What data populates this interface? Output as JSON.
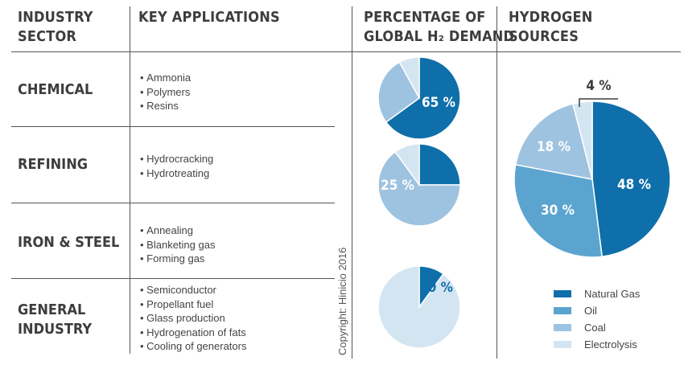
{
  "headers": {
    "sector": [
      "INDUSTRY",
      "SECTOR"
    ],
    "applications": [
      "KEY APPLICATIONS"
    ],
    "demand": [
      "PERCENTAGE OF",
      "GLOBAL H₂ DEMAND"
    ],
    "sources": [
      "HYDROGEN",
      "SOURCES"
    ]
  },
  "rows": [
    {
      "sector": [
        "CHEMICAL"
      ],
      "applications": [
        "Ammonia",
        "Polymers",
        "Resins"
      ]
    },
    {
      "sector": [
        "REFINING"
      ],
      "applications": [
        "Hydrocracking",
        "Hydrotreating"
      ]
    },
    {
      "sector": [
        "IRON & STEEL"
      ],
      "applications": [
        "Annealing",
        "Blanketing gas",
        "Forming gas"
      ]
    },
    {
      "sector": [
        "GENERAL",
        "INDUSTRY"
      ],
      "applications": [
        "Semiconductor",
        "Propellant fuel",
        "Glass production",
        "Hydrogenation of fats",
        "Cooling of generators"
      ]
    }
  ],
  "copyright": "Copyright: Hinicio 2016",
  "chart_data": [
    {
      "type": "pie",
      "title": "PERCENTAGE OF GLOBAL H₂ DEMAND",
      "charts": [
        {
          "category": "CHEMICAL",
          "value": 65,
          "label": "65 %",
          "rest_split": [
            27,
            8
          ]
        },
        {
          "category": "REFINING",
          "value": 25,
          "label": "25 %",
          "rest_split": [
            65,
            10
          ]
        },
        {
          "category": "GENERAL INDUSTRY",
          "value": 10,
          "label": "10 %",
          "rest_split": [
            90
          ]
        }
      ]
    },
    {
      "type": "pie",
      "title": "HYDROGEN SOURCES",
      "categories": [
        "Natural Gas",
        "Oil",
        "Coal",
        "Electrolysis"
      ],
      "values": [
        48,
        30,
        18,
        4
      ],
      "labels": [
        "48 %",
        "30 %",
        "18 %",
        "4 %"
      ],
      "legend_position": "bottom"
    }
  ],
  "colors": {
    "Natural Gas": "#0f6faa",
    "Oil": "#5ba4cf",
    "Coal": "#9ec3e0",
    "Electrolysis": "#d4e5f2",
    "text": "#3d3d3d",
    "rule": "#555555"
  }
}
